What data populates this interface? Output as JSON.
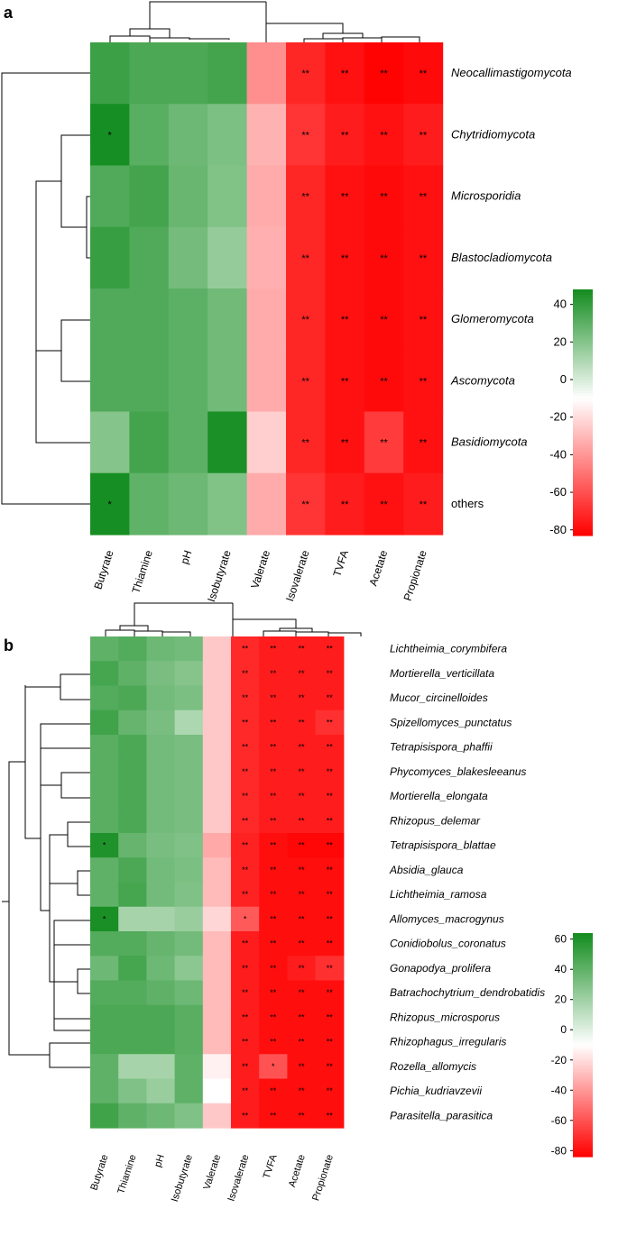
{
  "chart_data": [
    {
      "type": "heatmap",
      "panel_label": "a",
      "columns": [
        "Butyrate",
        "Thiamine",
        "pH",
        "Isobutyrate",
        "Valerate",
        "Isovalerate",
        "TVFA",
        "Acetate",
        "Propionate"
      ],
      "rows": [
        "Neocallimastigomycota",
        "Chytridiomycota",
        "Microsporidia",
        "Blastocladiomycota",
        "Glomeromycota",
        "Ascomycota",
        "Basidiomycota",
        "others"
      ],
      "rows_italic": [
        true,
        true,
        true,
        true,
        true,
        true,
        true,
        false
      ],
      "values": [
        [
          38,
          34,
          34,
          36,
          -42,
          -72,
          -78,
          -82,
          -80
        ],
        [
          47,
          31,
          26,
          22,
          -32,
          -68,
          -75,
          -78,
          -75
        ],
        [
          33,
          36,
          27,
          21,
          -34,
          -72,
          -78,
          -80,
          -78
        ],
        [
          39,
          33,
          24,
          16,
          -33,
          -72,
          -78,
          -80,
          -78
        ],
        [
          33,
          33,
          30,
          25,
          -34,
          -72,
          -78,
          -80,
          -78
        ],
        [
          33,
          33,
          30,
          25,
          -34,
          -72,
          -78,
          -80,
          -78
        ],
        [
          20,
          36,
          30,
          46,
          -24,
          -72,
          -78,
          -66,
          -78
        ],
        [
          47,
          29,
          26,
          21,
          -34,
          -68,
          -75,
          -78,
          -75
        ]
      ],
      "significance": [
        [
          "",
          "",
          "",
          "",
          "",
          "**",
          "**",
          "**",
          "**"
        ],
        [
          "*",
          "",
          "",
          "",
          "",
          "**",
          "**",
          "**",
          "**"
        ],
        [
          "",
          "",
          "",
          "",
          "",
          "**",
          "**",
          "**",
          "**"
        ],
        [
          "",
          "",
          "",
          "",
          "",
          "**",
          "**",
          "**",
          "**"
        ],
        [
          "",
          "",
          "",
          "",
          "",
          "**",
          "**",
          "**",
          "**"
        ],
        [
          "",
          "",
          "",
          "",
          "",
          "**",
          "**",
          "**",
          "**"
        ],
        [
          "",
          "",
          "",
          "",
          "",
          "**",
          "**",
          "**",
          "**"
        ],
        [
          "*",
          "",
          "",
          "",
          "",
          "**",
          "**",
          "**",
          "**"
        ]
      ],
      "color_scale": {
        "min": -83,
        "mid": -10,
        "max": 48,
        "low_color": "#ff0000",
        "mid_color": "#ffffff",
        "high_color": "#138c1f"
      },
      "colorbar_ticks": [
        40,
        20,
        0,
        -20,
        -40,
        -60,
        -80
      ]
    },
    {
      "type": "heatmap",
      "panel_label": "b",
      "columns": [
        "Butyrate",
        "Thiamine",
        "pH",
        "Isobutyrate",
        "Valerate",
        "Isovalerate",
        "TVFA",
        "Acetate",
        "Propionate"
      ],
      "rows": [
        "Lichtheimia_corymbifera",
        "Mortierella_verticillata",
        "Mucor_circinelloides",
        "Spizellomyces_punctatus",
        "Tetrapisispora_phaffii",
        "Phycomyces_blakesleeanus",
        "Mortierella_elongata",
        "Rhizopus_delemar",
        "Tetrapisispora_blattae",
        "Absidia_glauca",
        "Lichtheimia_ramosa",
        "Allomyces_macrogynus",
        "Conidiobolus_coronatus",
        "Gonapodya_prolifera",
        "Batrachochytrium_dendrobatidis",
        "Rhizopus_microsporus",
        "Rhizophagus_irregularis",
        "Rozella_allomycis",
        "Pichia_kudriavzevii",
        "Parasitella_parasitica"
      ],
      "rows_italic": [
        true,
        true,
        true,
        true,
        true,
        true,
        true,
        true,
        true,
        true,
        true,
        true,
        true,
        true,
        true,
        true,
        true,
        true,
        true,
        true
      ],
      "values": [
        [
          40,
          44,
          36,
          34,
          -26,
          -72,
          -76,
          -76,
          -76
        ],
        [
          48,
          40,
          32,
          28,
          -26,
          -72,
          -76,
          -76,
          -76
        ],
        [
          44,
          46,
          34,
          31,
          -26,
          -72,
          -76,
          -76,
          -76
        ],
        [
          50,
          38,
          32,
          16,
          -26,
          -72,
          -76,
          -76,
          -70
        ],
        [
          42,
          46,
          34,
          32,
          -26,
          -72,
          -76,
          -76,
          -76
        ],
        [
          42,
          46,
          34,
          32,
          -26,
          -72,
          -76,
          -76,
          -76
        ],
        [
          42,
          46,
          34,
          32,
          -26,
          -72,
          -76,
          -76,
          -76
        ],
        [
          42,
          46,
          34,
          32,
          -26,
          -72,
          -76,
          -76,
          -76
        ],
        [
          60,
          38,
          32,
          30,
          -35,
          -74,
          -80,
          -82,
          -82
        ],
        [
          40,
          46,
          34,
          31,
          -30,
          -74,
          -80,
          -80,
          -80
        ],
        [
          40,
          48,
          34,
          30,
          -30,
          -74,
          -80,
          -80,
          -80
        ],
        [
          62,
          18,
          18,
          22,
          -22,
          -58,
          -80,
          -80,
          -80
        ],
        [
          44,
          44,
          38,
          34,
          -30,
          -76,
          -80,
          -80,
          -80
        ],
        [
          36,
          48,
          36,
          26,
          -30,
          -76,
          -80,
          -76,
          -70
        ],
        [
          44,
          44,
          40,
          36,
          -30,
          -76,
          -80,
          -80,
          -80
        ],
        [
          46,
          46,
          46,
          42,
          -30,
          -76,
          -80,
          -80,
          -80
        ],
        [
          46,
          46,
          46,
          42,
          -30,
          -76,
          -80,
          -80,
          -80
        ],
        [
          40,
          18,
          18,
          40,
          -14,
          -76,
          -60,
          -80,
          -80
        ],
        [
          40,
          30,
          22,
          40,
          -10,
          -76,
          -80,
          -80,
          -80
        ],
        [
          50,
          40,
          36,
          30,
          -26,
          -76,
          -80,
          -80,
          -80
        ]
      ],
      "significance": [
        [
          "",
          "",
          "",
          "",
          "",
          "**",
          "**",
          "**",
          "**"
        ],
        [
          "",
          "",
          "",
          "",
          "",
          "**",
          "**",
          "**",
          "**"
        ],
        [
          "",
          "",
          "",
          "",
          "",
          "**",
          "**",
          "**",
          "**"
        ],
        [
          "",
          "",
          "",
          "",
          "",
          "**",
          "**",
          "**",
          "**"
        ],
        [
          "",
          "",
          "",
          "",
          "",
          "**",
          "**",
          "**",
          "**"
        ],
        [
          "",
          "",
          "",
          "",
          "",
          "**",
          "**",
          "**",
          "**"
        ],
        [
          "",
          "",
          "",
          "",
          "",
          "**",
          "**",
          "**",
          "**"
        ],
        [
          "",
          "",
          "",
          "",
          "",
          "**",
          "**",
          "**",
          "**"
        ],
        [
          "*",
          "",
          "",
          "",
          "",
          "**",
          "**",
          "**",
          "**"
        ],
        [
          "",
          "",
          "",
          "",
          "",
          "**",
          "**",
          "**",
          "**"
        ],
        [
          "",
          "",
          "",
          "",
          "",
          "**",
          "**",
          "**",
          "**"
        ],
        [
          "*",
          "",
          "",
          "",
          "",
          "*",
          "**",
          "**",
          "**"
        ],
        [
          "",
          "",
          "",
          "",
          "",
          "**",
          "**",
          "**",
          "**"
        ],
        [
          "",
          "",
          "",
          "",
          "",
          "**",
          "**",
          "**",
          "**"
        ],
        [
          "",
          "",
          "",
          "",
          "",
          "**",
          "**",
          "**",
          "**"
        ],
        [
          "",
          "",
          "",
          "",
          "",
          "**",
          "**",
          "**",
          "**"
        ],
        [
          "",
          "",
          "",
          "",
          "",
          "**",
          "**",
          "**",
          "**"
        ],
        [
          "",
          "",
          "",
          "",
          "",
          "**",
          "*",
          "**",
          "**"
        ],
        [
          "",
          "",
          "",
          "",
          "",
          "**",
          "**",
          "**",
          "**"
        ],
        [
          "",
          "",
          "",
          "",
          "",
          "**",
          "**",
          "**",
          "**"
        ]
      ],
      "color_scale": {
        "min": -84,
        "mid": -10,
        "max": 64,
        "low_color": "#ff0000",
        "mid_color": "#ffffff",
        "high_color": "#138c1f"
      },
      "colorbar_ticks": [
        60,
        40,
        20,
        0,
        -20,
        -40,
        -60,
        -80
      ]
    }
  ]
}
